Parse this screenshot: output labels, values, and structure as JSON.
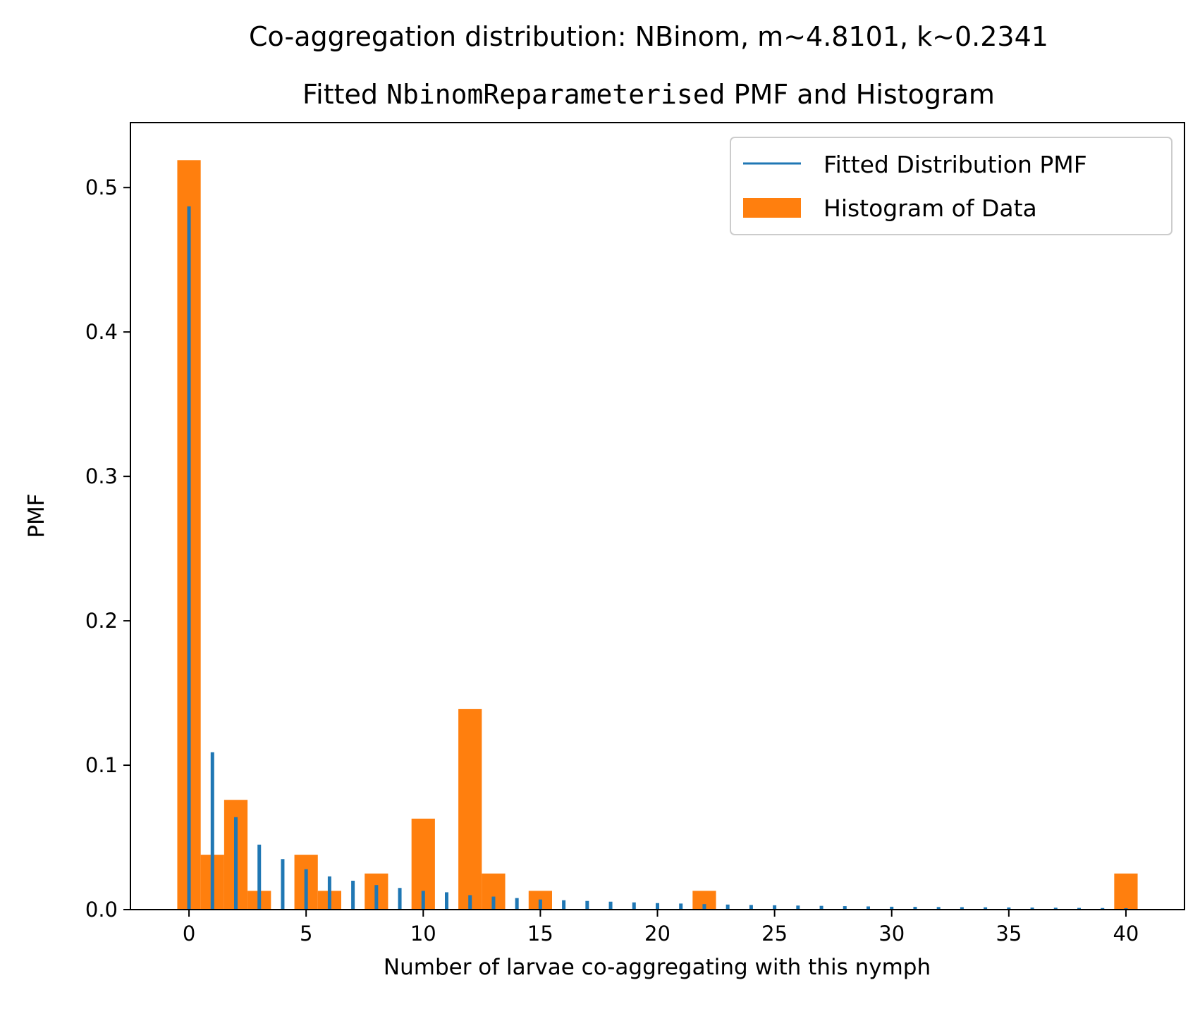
{
  "chart_data": {
    "type": "bar",
    "suptitle": "Co-aggregation distribution: NBinom, m~4.8101, k~0.2341",
    "title_prefix": "Fitted ",
    "title_mono": "NbinomReparameterised",
    "title_suffix": " PMF and Histogram",
    "xlabel": "Number of larvae co-aggregating with this nymph",
    "ylabel": "PMF",
    "xlim": [
      -2.5,
      42.5
    ],
    "ylim": [
      0,
      0.545
    ],
    "xticks": [
      0,
      5,
      10,
      15,
      20,
      25,
      30,
      35,
      40
    ],
    "yticks": [
      0.0,
      0.1,
      0.2,
      0.3,
      0.4,
      0.5
    ],
    "ytick_labels": [
      "0.0",
      "0.1",
      "0.2",
      "0.3",
      "0.4",
      "0.5"
    ],
    "grid": false,
    "legend_position": "upper right",
    "pmf": {
      "name": "Fitted Distribution PMF",
      "color": "#1f77b4",
      "x": [
        0,
        1,
        2,
        3,
        4,
        5,
        6,
        7,
        8,
        9,
        10,
        11,
        12,
        13,
        14,
        15,
        16,
        17,
        18,
        19,
        20,
        21,
        22,
        23,
        24,
        25,
        26,
        27,
        28,
        29,
        30,
        31,
        32,
        33,
        34,
        35,
        36,
        37,
        38,
        39,
        40
      ],
      "values": [
        0.487,
        0.109,
        0.064,
        0.045,
        0.035,
        0.028,
        0.023,
        0.02,
        0.017,
        0.015,
        0.013,
        0.012,
        0.01,
        0.009,
        0.008,
        0.007,
        0.0065,
        0.006,
        0.0055,
        0.005,
        0.0045,
        0.0042,
        0.0038,
        0.0035,
        0.0032,
        0.003,
        0.0028,
        0.0026,
        0.0024,
        0.0022,
        0.002,
        0.0019,
        0.0018,
        0.0017,
        0.0016,
        0.0015,
        0.0014,
        0.0013,
        0.0012,
        0.0011,
        0.001
      ]
    },
    "histogram": {
      "name": "Histogram of Data",
      "color": "#ff7f0e",
      "bin_edges": [
        -0.5,
        0.5,
        1.5,
        2.5,
        3.5,
        4.5,
        5.5,
        6.5,
        7.5,
        8.5,
        9.5,
        10.5,
        11.5,
        12.5,
        13.5,
        14.5,
        15.5,
        16.5,
        17.5,
        18.5,
        19.5,
        20.5,
        21.5,
        22.5,
        23.5,
        24.5,
        25.5,
        26.5,
        27.5,
        28.5,
        29.5,
        30.5,
        31.5,
        32.5,
        33.5,
        34.5,
        35.5,
        36.5,
        37.5,
        38.5,
        39.5,
        40.5
      ],
      "values": [
        0.519,
        0.038,
        0.076,
        0.013,
        0,
        0.038,
        0.013,
        0,
        0.025,
        0,
        0.063,
        0,
        0.139,
        0.025,
        0,
        0.013,
        0,
        0,
        0,
        0,
        0,
        0,
        0.013,
        0,
        0,
        0,
        0,
        0,
        0,
        0,
        0,
        0,
        0,
        0,
        0,
        0,
        0,
        0,
        0,
        0,
        0.025
      ]
    }
  }
}
